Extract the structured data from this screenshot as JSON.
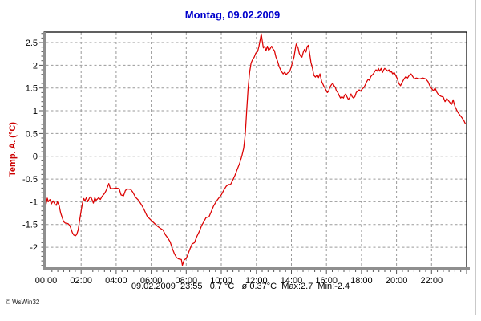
{
  "window": {
    "background": "#ffffff",
    "border_color": "#c9c9c9"
  },
  "title": {
    "text": "Montag, 09.02.2009",
    "color": "#0000cc"
  },
  "status": {
    "line": "09.02.2009  23:55   0.7 °C   ø 0.37°C  Max:2.7  Min:-2.4"
  },
  "credit": {
    "text": "© WsWin32"
  },
  "chart_data": {
    "type": "line",
    "title": "Montag, 09.02.2009",
    "xlabel": "",
    "ylabel": "Temp. A. (°C)",
    "ylabel_color": "#cc0000",
    "line_color": "#dc0000",
    "grid": true,
    "grid_color": "#9a9a9a",
    "axis_color": "#8f8f8f",
    "tick_color": "#555555",
    "border_color": "#000000",
    "xlim_hours": [
      0,
      24
    ],
    "ylim": [
      -2.44,
      2.73
    ],
    "x_minor_tick_minutes": 20,
    "y_minor_tick_step": 0.1,
    "x_ticks": [
      {
        "hour": 0,
        "label": "00:00"
      },
      {
        "hour": 2,
        "label": "02:00"
      },
      {
        "hour": 4,
        "label": "04:00"
      },
      {
        "hour": 6,
        "label": "06:00"
      },
      {
        "hour": 8,
        "label": "08:00"
      },
      {
        "hour": 10,
        "label": "10:00"
      },
      {
        "hour": 12,
        "label": "12:00"
      },
      {
        "hour": 14,
        "label": "14:00"
      },
      {
        "hour": 16,
        "label": "16:00"
      },
      {
        "hour": 18,
        "label": "18:00"
      },
      {
        "hour": 20,
        "label": "20:00"
      },
      {
        "hour": 22,
        "label": "22:00"
      },
      {
        "hour": 24,
        "label": ""
      }
    ],
    "y_ticks": [
      {
        "value": 2.5,
        "label": "2.5"
      },
      {
        "value": 2,
        "label": "2"
      },
      {
        "value": 1.5,
        "label": "1.5"
      },
      {
        "value": 1,
        "label": "1"
      },
      {
        "value": 0.5,
        "label": "0.5"
      },
      {
        "value": 0,
        "label": "0"
      },
      {
        "value": -0.5,
        "label": "-0.5"
      },
      {
        "value": -1,
        "label": "-1"
      },
      {
        "value": -1.5,
        "label": "-1.5"
      },
      {
        "value": -2,
        "label": "-2"
      }
    ],
    "stats": {
      "date": "09.02.2009",
      "last_time": "23:55",
      "last_value": "0.7 °C",
      "mean": "ø 0.37°C",
      "max": "Max:2.7",
      "min": "Min:-2.4"
    },
    "series": [
      {
        "name": "Temp. A.",
        "unit": "°C",
        "color": "#dc0000",
        "points": [
          [
            0.0,
            -1.05
          ],
          [
            0.07,
            -0.92
          ],
          [
            0.13,
            -1.0
          ],
          [
            0.22,
            -0.95
          ],
          [
            0.3,
            -1.05
          ],
          [
            0.4,
            -0.98
          ],
          [
            0.5,
            -1.05
          ],
          [
            0.58,
            -1.08
          ],
          [
            0.65,
            -1.0
          ],
          [
            0.75,
            -1.09
          ],
          [
            0.83,
            -1.24
          ],
          [
            0.92,
            -1.35
          ],
          [
            1.0,
            -1.44
          ],
          [
            1.1,
            -1.47
          ],
          [
            1.25,
            -1.48
          ],
          [
            1.35,
            -1.52
          ],
          [
            1.42,
            -1.59
          ],
          [
            1.5,
            -1.68
          ],
          [
            1.58,
            -1.73
          ],
          [
            1.67,
            -1.75
          ],
          [
            1.75,
            -1.72
          ],
          [
            1.83,
            -1.62
          ],
          [
            1.9,
            -1.45
          ],
          [
            2.0,
            -1.2
          ],
          [
            2.08,
            -1.02
          ],
          [
            2.15,
            -0.93
          ],
          [
            2.22,
            -0.98
          ],
          [
            2.3,
            -0.91
          ],
          [
            2.38,
            -1.0
          ],
          [
            2.47,
            -0.92
          ],
          [
            2.55,
            -0.89
          ],
          [
            2.62,
            -0.95
          ],
          [
            2.7,
            -1.03
          ],
          [
            2.78,
            -0.91
          ],
          [
            2.85,
            -0.97
          ],
          [
            2.93,
            -0.94
          ],
          [
            3.0,
            -0.91
          ],
          [
            3.1,
            -0.95
          ],
          [
            3.2,
            -0.88
          ],
          [
            3.33,
            -0.82
          ],
          [
            3.42,
            -0.76
          ],
          [
            3.5,
            -0.68
          ],
          [
            3.58,
            -0.6
          ],
          [
            3.67,
            -0.71
          ],
          [
            3.83,
            -0.71
          ],
          [
            4.0,
            -0.7
          ],
          [
            4.17,
            -0.71
          ],
          [
            4.28,
            -0.85
          ],
          [
            4.42,
            -0.87
          ],
          [
            4.53,
            -0.75
          ],
          [
            4.67,
            -0.72
          ],
          [
            4.83,
            -0.73
          ],
          [
            4.95,
            -0.79
          ],
          [
            5.1,
            -0.9
          ],
          [
            5.28,
            -0.97
          ],
          [
            5.45,
            -1.07
          ],
          [
            5.58,
            -1.16
          ],
          [
            5.77,
            -1.32
          ],
          [
            6.0,
            -1.41
          ],
          [
            6.17,
            -1.47
          ],
          [
            6.33,
            -1.53
          ],
          [
            6.5,
            -1.58
          ],
          [
            6.67,
            -1.62
          ],
          [
            6.8,
            -1.72
          ],
          [
            6.95,
            -1.8
          ],
          [
            7.08,
            -1.88
          ],
          [
            7.2,
            -2.02
          ],
          [
            7.33,
            -2.15
          ],
          [
            7.45,
            -2.23
          ],
          [
            7.58,
            -2.26
          ],
          [
            7.72,
            -2.27
          ],
          [
            7.78,
            -2.4
          ],
          [
            7.88,
            -2.28
          ],
          [
            8.0,
            -2.25
          ],
          [
            8.1,
            -2.15
          ],
          [
            8.22,
            -2.03
          ],
          [
            8.33,
            -1.93
          ],
          [
            8.47,
            -1.9
          ],
          [
            8.6,
            -1.77
          ],
          [
            8.75,
            -1.65
          ],
          [
            8.88,
            -1.52
          ],
          [
            9.0,
            -1.44
          ],
          [
            9.13,
            -1.35
          ],
          [
            9.3,
            -1.33
          ],
          [
            9.42,
            -1.22
          ],
          [
            9.55,
            -1.1
          ],
          [
            9.7,
            -1.0
          ],
          [
            9.85,
            -0.92
          ],
          [
            10.0,
            -0.85
          ],
          [
            10.15,
            -0.74
          ],
          [
            10.28,
            -0.66
          ],
          [
            10.4,
            -0.62
          ],
          [
            10.53,
            -0.62
          ],
          [
            10.65,
            -0.53
          ],
          [
            10.78,
            -0.42
          ],
          [
            10.9,
            -0.3
          ],
          [
            11.05,
            -0.15
          ],
          [
            11.17,
            0.0
          ],
          [
            11.28,
            0.18
          ],
          [
            11.37,
            0.5
          ],
          [
            11.45,
            1.0
          ],
          [
            11.53,
            1.5
          ],
          [
            11.62,
            1.85
          ],
          [
            11.7,
            2.05
          ],
          [
            11.78,
            2.12
          ],
          [
            11.88,
            2.18
          ],
          [
            11.97,
            2.27
          ],
          [
            12.07,
            2.3
          ],
          [
            12.15,
            2.42
          ],
          [
            12.28,
            2.69
          ],
          [
            12.33,
            2.55
          ],
          [
            12.4,
            2.38
          ],
          [
            12.48,
            2.42
          ],
          [
            12.55,
            2.32
          ],
          [
            12.63,
            2.42
          ],
          [
            12.7,
            2.33
          ],
          [
            12.78,
            2.36
          ],
          [
            12.87,
            2.42
          ],
          [
            12.95,
            2.36
          ],
          [
            13.03,
            2.32
          ],
          [
            13.12,
            2.18
          ],
          [
            13.2,
            2.1
          ],
          [
            13.3,
            1.97
          ],
          [
            13.42,
            1.87
          ],
          [
            13.53,
            1.81
          ],
          [
            13.62,
            1.85
          ],
          [
            13.7,
            1.79
          ],
          [
            13.78,
            1.83
          ],
          [
            13.9,
            1.86
          ],
          [
            13.97,
            1.94
          ],
          [
            14.05,
            2.05
          ],
          [
            14.15,
            2.18
          ],
          [
            14.25,
            2.42
          ],
          [
            14.28,
            2.47
          ],
          [
            14.38,
            2.38
          ],
          [
            14.45,
            2.26
          ],
          [
            14.53,
            2.2
          ],
          [
            14.6,
            2.18
          ],
          [
            14.68,
            2.29
          ],
          [
            14.75,
            2.35
          ],
          [
            14.83,
            2.29
          ],
          [
            14.9,
            2.41
          ],
          [
            14.97,
            2.44
          ],
          [
            15.05,
            2.24
          ],
          [
            15.12,
            2.06
          ],
          [
            15.2,
            1.94
          ],
          [
            15.28,
            1.78
          ],
          [
            15.37,
            1.74
          ],
          [
            15.47,
            1.79
          ],
          [
            15.55,
            1.73
          ],
          [
            15.63,
            1.81
          ],
          [
            15.73,
            1.64
          ],
          [
            15.88,
            1.52
          ],
          [
            15.97,
            1.46
          ],
          [
            16.05,
            1.4
          ],
          [
            16.12,
            1.43
          ],
          [
            16.2,
            1.52
          ],
          [
            16.3,
            1.58
          ],
          [
            16.37,
            1.6
          ],
          [
            16.43,
            1.55
          ],
          [
            16.5,
            1.52
          ],
          [
            16.57,
            1.44
          ],
          [
            16.65,
            1.4
          ],
          [
            16.72,
            1.34
          ],
          [
            16.8,
            1.28
          ],
          [
            16.88,
            1.31
          ],
          [
            16.97,
            1.28
          ],
          [
            17.03,
            1.34
          ],
          [
            17.1,
            1.37
          ],
          [
            17.17,
            1.31
          ],
          [
            17.25,
            1.25
          ],
          [
            17.32,
            1.28
          ],
          [
            17.4,
            1.37
          ],
          [
            17.47,
            1.31
          ],
          [
            17.55,
            1.28
          ],
          [
            17.62,
            1.31
          ],
          [
            17.7,
            1.4
          ],
          [
            17.77,
            1.43
          ],
          [
            17.87,
            1.46
          ],
          [
            17.95,
            1.43
          ],
          [
            18.0,
            1.46
          ],
          [
            18.15,
            1.52
          ],
          [
            18.23,
            1.58
          ],
          [
            18.3,
            1.64
          ],
          [
            18.38,
            1.69
          ],
          [
            18.45,
            1.67
          ],
          [
            18.53,
            1.75
          ],
          [
            18.6,
            1.78
          ],
          [
            18.68,
            1.81
          ],
          [
            18.77,
            1.87
          ],
          [
            18.83,
            1.9
          ],
          [
            18.9,
            1.87
          ],
          [
            18.97,
            1.93
          ],
          [
            19.03,
            1.87
          ],
          [
            19.12,
            1.93
          ],
          [
            19.2,
            1.84
          ],
          [
            19.27,
            1.9
          ],
          [
            19.33,
            1.93
          ],
          [
            19.42,
            1.9
          ],
          [
            19.5,
            1.87
          ],
          [
            19.57,
            1.9
          ],
          [
            19.63,
            1.84
          ],
          [
            19.7,
            1.87
          ],
          [
            19.78,
            1.81
          ],
          [
            19.87,
            1.84
          ],
          [
            19.95,
            1.78
          ],
          [
            20.05,
            1.7
          ],
          [
            20.13,
            1.6
          ],
          [
            20.23,
            1.55
          ],
          [
            20.33,
            1.63
          ],
          [
            20.43,
            1.7
          ],
          [
            20.53,
            1.75
          ],
          [
            20.63,
            1.72
          ],
          [
            20.73,
            1.78
          ],
          [
            20.83,
            1.81
          ],
          [
            20.93,
            1.75
          ],
          [
            21.03,
            1.7
          ],
          [
            21.13,
            1.72
          ],
          [
            21.33,
            1.7
          ],
          [
            21.5,
            1.72
          ],
          [
            21.67,
            1.7
          ],
          [
            21.8,
            1.64
          ],
          [
            21.9,
            1.55
          ],
          [
            22.0,
            1.49
          ],
          [
            22.1,
            1.44
          ],
          [
            22.2,
            1.5
          ],
          [
            22.3,
            1.41
          ],
          [
            22.4,
            1.35
          ],
          [
            22.53,
            1.32
          ],
          [
            22.67,
            1.3
          ],
          [
            22.77,
            1.2
          ],
          [
            22.87,
            1.27
          ],
          [
            22.97,
            1.22
          ],
          [
            23.07,
            1.17
          ],
          [
            23.15,
            1.14
          ],
          [
            23.23,
            1.24
          ],
          [
            23.33,
            1.1
          ],
          [
            23.43,
            1.02
          ],
          [
            23.53,
            0.95
          ],
          [
            23.63,
            0.9
          ],
          [
            23.75,
            0.84
          ],
          [
            23.85,
            0.78
          ],
          [
            23.92,
            0.72
          ]
        ]
      }
    ]
  }
}
